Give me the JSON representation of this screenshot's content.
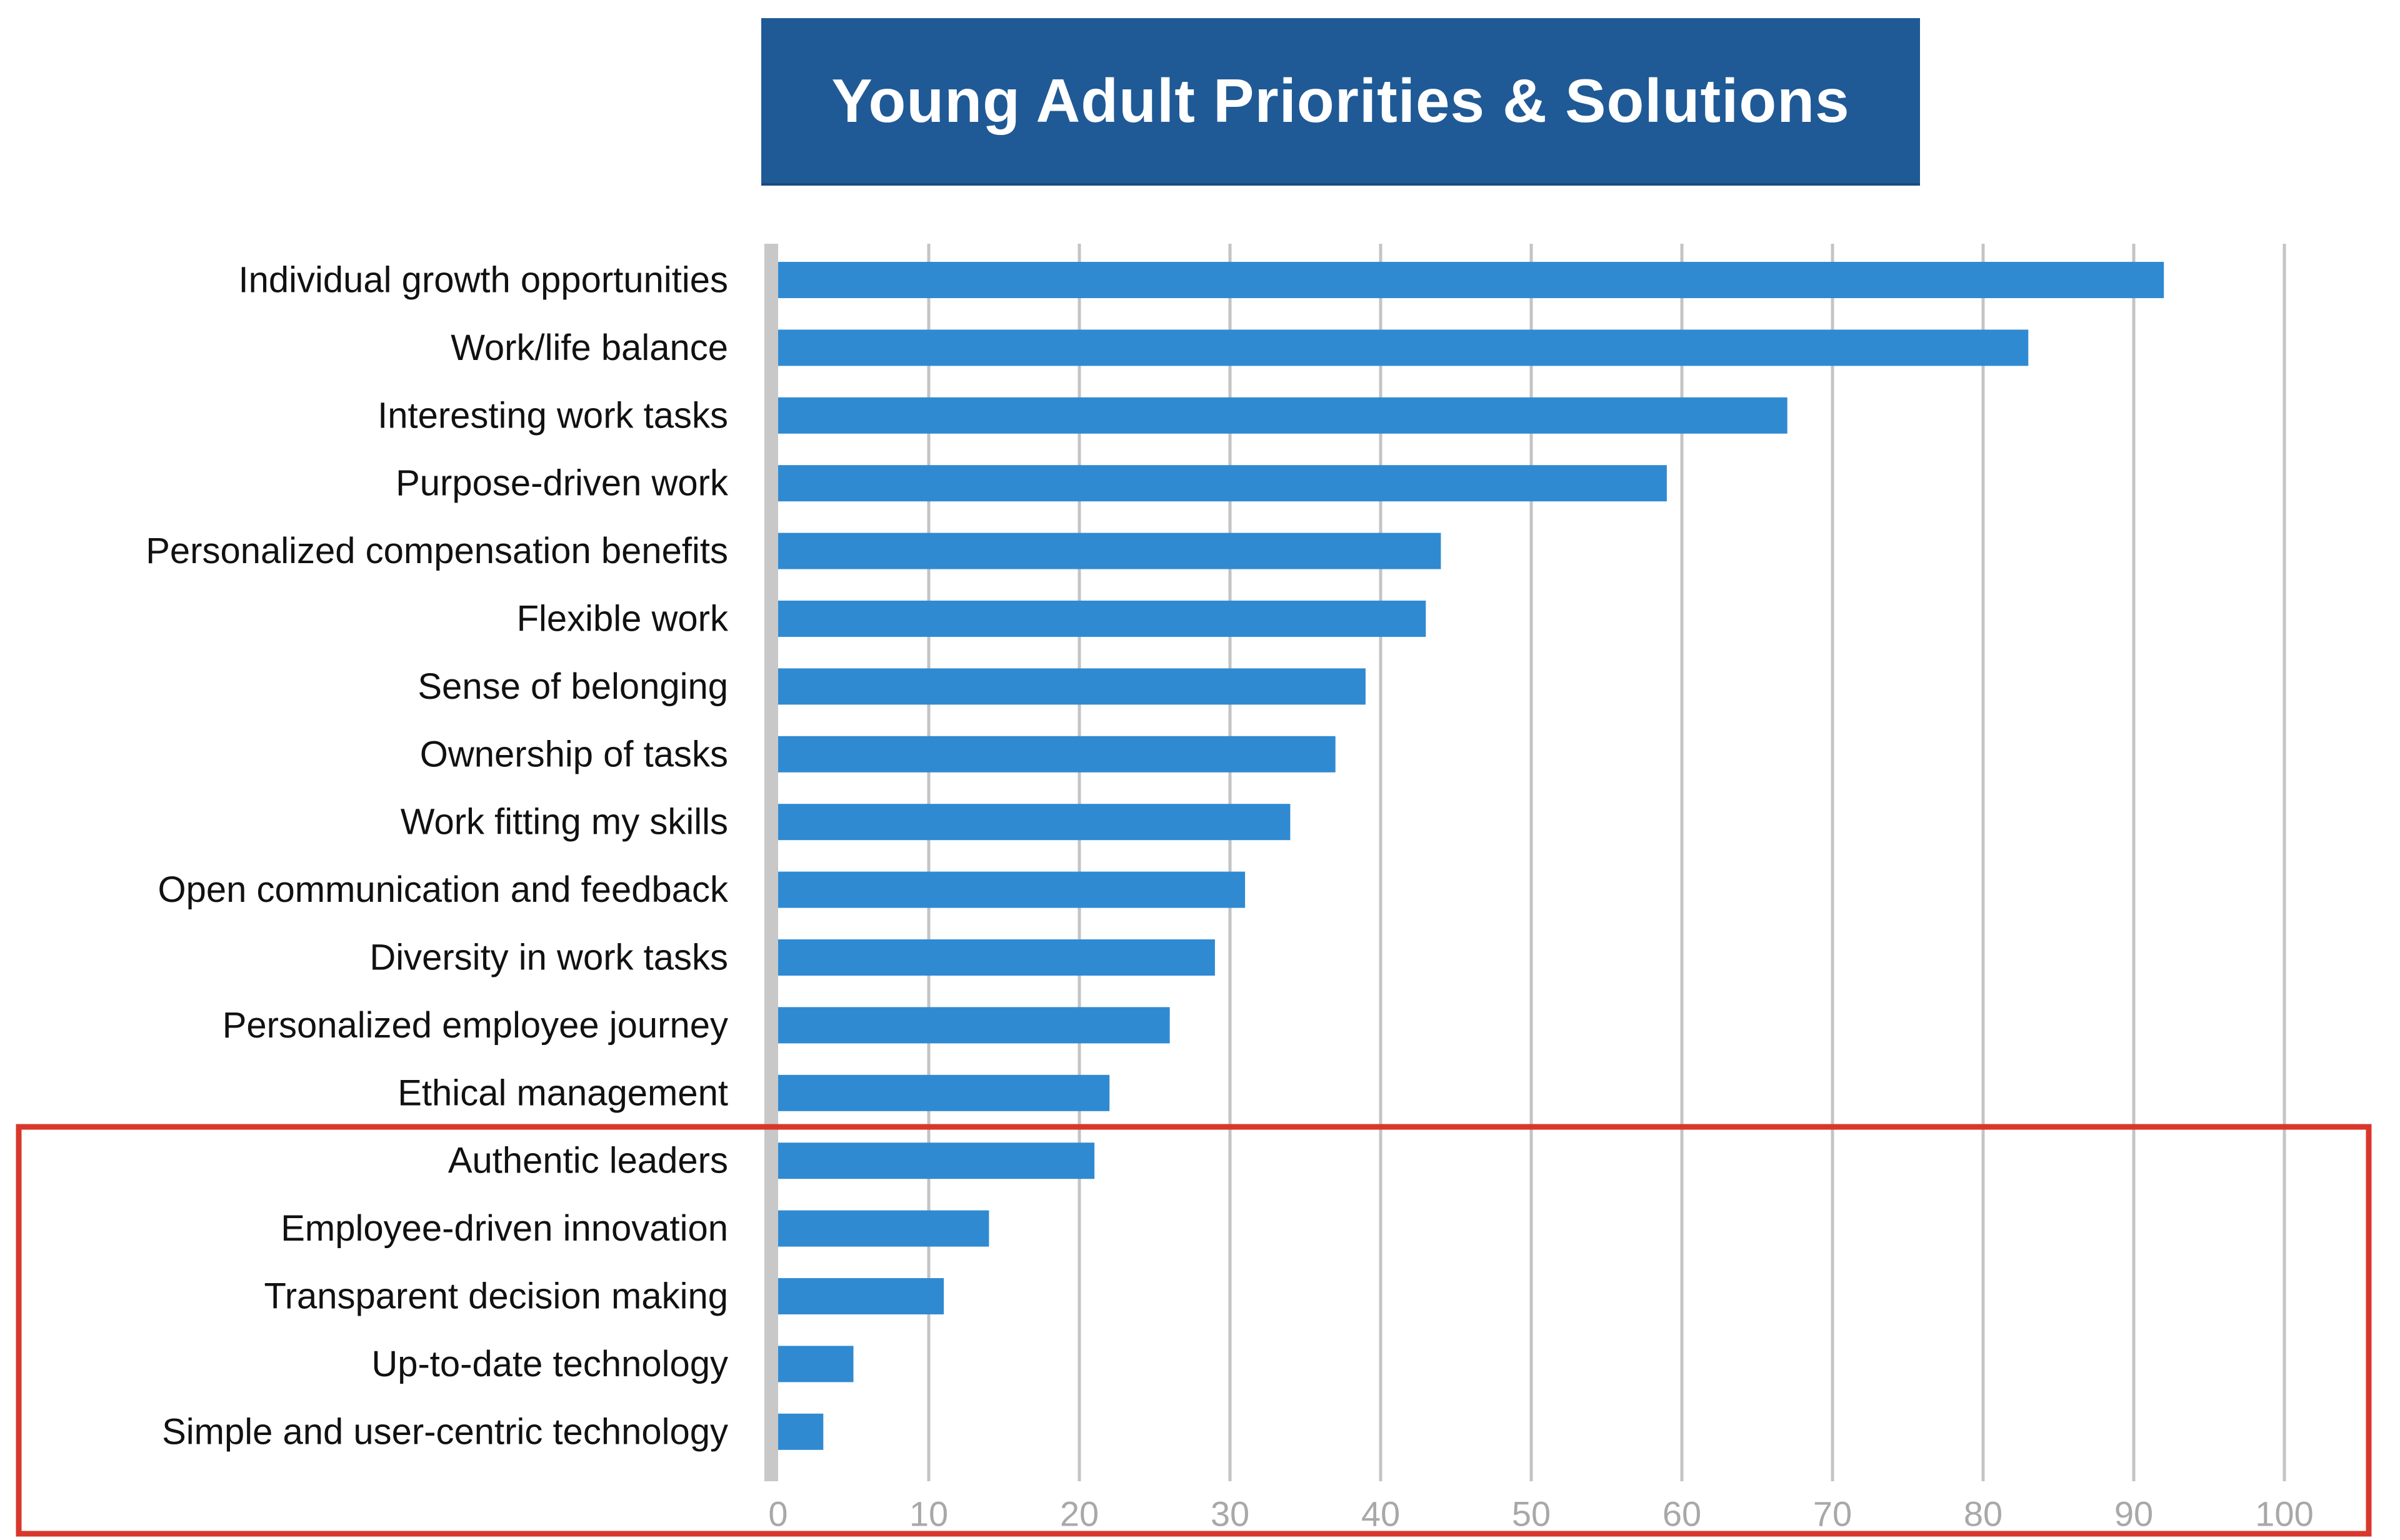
{
  "chart_data": {
    "type": "bar",
    "orientation": "horizontal",
    "title": "Young Adult Priorities & Solutions",
    "categories": [
      "Individual growth opportunities",
      "Work/life balance",
      "Interesting work tasks",
      "Purpose-driven work",
      "Personalized compensation benefits",
      "Flexible work",
      "Sense of belonging",
      "Ownership of tasks",
      "Work fitting my skills",
      "Open communication and feedback",
      "Diversity in work tasks",
      "Personalized employee journey",
      "Ethical management",
      "Authentic leaders",
      "Employee-driven innovation",
      "Transparent decision making",
      "Up-to-date technology",
      "Simple and user-centric technology"
    ],
    "values": [
      92,
      83,
      67,
      59,
      44,
      43,
      39,
      37,
      34,
      31,
      29,
      26,
      22,
      21,
      14,
      11,
      5,
      3
    ],
    "xlim": [
      0,
      100
    ],
    "xticks": [
      "0",
      "10",
      "20",
      "30",
      "40",
      "50",
      "60",
      "70",
      "80",
      "90",
      "100"
    ],
    "xlabel": "",
    "ylabel": "",
    "grid": true,
    "highlight": {
      "categories": [
        "Authentic leaders",
        "Employee-driven innovation",
        "Transparent decision making",
        "Up-to-date technology",
        "Simple and user-centric technology"
      ],
      "color": "#d9372b"
    },
    "colors": {
      "bar": "#2f8ad2",
      "title_bg": "#1f5a96",
      "grid": "#c4c4c4",
      "baseline": "#c8c8c8",
      "tick_text": "#a8a8a8"
    }
  }
}
